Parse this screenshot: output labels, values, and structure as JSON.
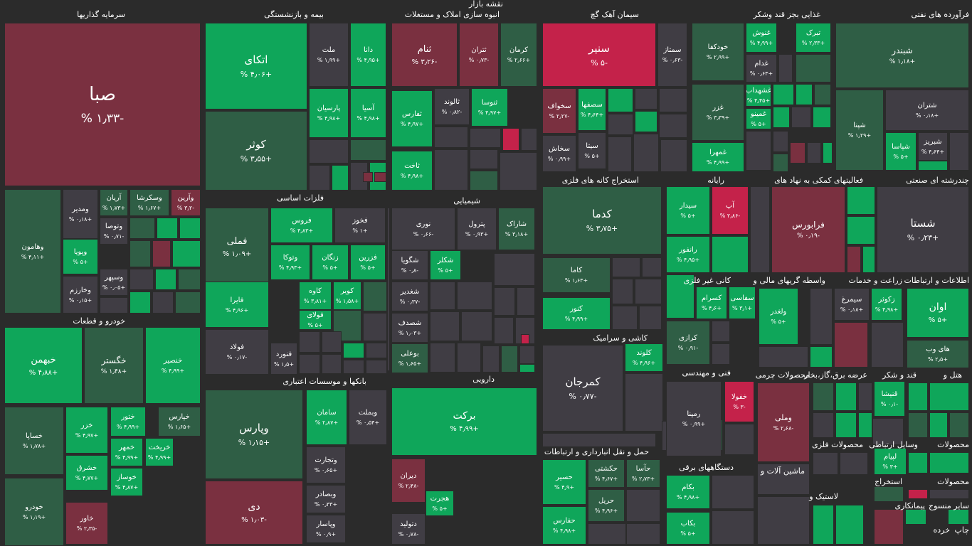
{
  "title": "نقشه بازار",
  "colors": {
    "green": "#0fa65a",
    "green2": "#138a4f",
    "dkgreen": "#2f5e45",
    "dark": "#403d44",
    "red": "#c4224a",
    "dkred": "#7a3040"
  },
  "chart_data": {
    "type": "heatmap",
    "sectors": [
      "سرمایه گذاریها",
      "بیمه و بازنشستگی",
      "انبوه سازی املاک و مستغلات",
      "سیمان آهک گچ",
      "غذایی بجز قند وشکر",
      "فرآورده های نفتی",
      "فلزات اساسی",
      "شیمیایی",
      "استخراج کانه های فلزی",
      "رایانه",
      "فعالیتهای کمکی به نهاد های",
      "چندرشته ای صنعتی",
      "خودرو و قطعات",
      "بانکها و موسسات اعتباری",
      "دارویی",
      "کاشی و سرامیک",
      "کانی غیر فلزی",
      "واسطه گریهای مالی و",
      "زراعت و خدمات",
      "اطلاعات و ارتباطات",
      "فنی و مهندسی",
      "محصولات چرمی",
      "عرضه برق،گاز،بخار",
      "قند و شکر",
      "هتل و",
      "حمل و نقل انبارداری و ارتباطات",
      "دستگاههای برقی",
      "ماشین آلات و",
      "محصولات فلزی",
      "وسایل ارتباطی",
      "محصولات",
      "لاستیک و",
      "استخراج",
      "محصولات",
      "ساير منسوج",
      "پیمانکاری",
      "خرده",
      "چاپ"
    ],
    "symbols": [
      {
        "name": "صبا",
        "change": "-۱٫۳۳ %"
      },
      {
        "name": "وهامون",
        "change": "+۴٫۱۱ %"
      },
      {
        "name": "ومدیر",
        "change": "+۰٫۱۸ %"
      },
      {
        "name": "آریان",
        "change": "+۱٫۷۳ %"
      },
      {
        "name": "وسکرشا",
        "change": "+۱٫۶۷ %"
      },
      {
        "name": "وآرین",
        "change": "-۳٫۲ %"
      },
      {
        "name": "وتوصا",
        "change": "-۰٫۷۱ %"
      },
      {
        "name": "وپویا",
        "change": "+۵ %"
      },
      {
        "name": "وسپهر",
        "change": "+۰٫۰۵ %"
      },
      {
        "name": "وخارزم",
        "change": "+۰٫۱۵ %"
      },
      {
        "name": "اتکای",
        "change": "+۴٫۰۶ %"
      },
      {
        "name": "ملت",
        "change": "+۱٫۹۹ %"
      },
      {
        "name": "دانا",
        "change": "+۴٫۹۵ %"
      },
      {
        "name": "پارسیان",
        "change": "+۴٫۹۸ %"
      },
      {
        "name": "آسیا",
        "change": "+۴٫۹۸ %"
      },
      {
        "name": "کوثر",
        "change": "+۳٫۵۵ %"
      },
      {
        "name": "ثنام",
        "change": "-۳٫۲۶ %"
      },
      {
        "name": "ثتران",
        "change": "-۰٫۷۳ %"
      },
      {
        "name": "کرمان",
        "change": "+۲٫۶۶ %"
      },
      {
        "name": "ثالوند",
        "change": "-۰٫۸۲ %"
      },
      {
        "name": "ثنوسا",
        "change": "+۴٫۹۷ %"
      },
      {
        "name": "ثفارس",
        "change": "+۴٫۹۷ %"
      },
      {
        "name": "ثاخت",
        "change": "+۴٫۹۸ %"
      },
      {
        "name": "سنیر",
        "change": "-۵ %"
      },
      {
        "name": "سمتاز",
        "change": "-۰٫۶۳ %"
      },
      {
        "name": "سخواف",
        "change": "-۲٫۲۷ %"
      },
      {
        "name": "سصفها",
        "change": "+۴٫۶۴ %"
      },
      {
        "name": "سخاش",
        "change": "+۰٫۹۹ %"
      },
      {
        "name": "سیتا",
        "change": "+۵ %"
      },
      {
        "name": "خودکفا",
        "change": "+۲٫۹۹ %"
      },
      {
        "name": "غنوش",
        "change": "+۴٫۹۹ %"
      },
      {
        "name": "تبرک",
        "change": "+۲٫۳۳ %"
      },
      {
        "name": "غدام",
        "change": "+۰٫۶۳ %"
      },
      {
        "name": "غزر",
        "change": "+۳٫۳۹ %"
      },
      {
        "name": "غشهداب",
        "change": "+۴٫۴۵ %"
      },
      {
        "name": "غمینو",
        "change": "+۵ %"
      },
      {
        "name": "غمهرا",
        "change": "+۴٫۹۹ %"
      },
      {
        "name": "شبندر",
        "change": "+۱٫۱۸ %"
      },
      {
        "name": "شتران",
        "change": "+۰٫۱۸ %"
      },
      {
        "name": "شپنا",
        "change": "+۱٫۲۹ %"
      },
      {
        "name": "شپاسا",
        "change": "+۵ %"
      },
      {
        "name": "شبریز",
        "change": "+۴٫۶۴ %"
      },
      {
        "name": "فملی",
        "change": "+۱٫۰۹ %"
      },
      {
        "name": "فروس",
        "change": "+۴٫۸۳ %"
      },
      {
        "name": "فخوز",
        "change": "+۱ %"
      },
      {
        "name": "وتوکا",
        "change": "+۴٫۹۳ %"
      },
      {
        "name": "زنگان",
        "change": "+۵ %"
      },
      {
        "name": "فزرین",
        "change": "+۵ %"
      },
      {
        "name": "فایرا",
        "change": "+۴٫۹۶ %"
      },
      {
        "name": "کاوه",
        "change": "+۳٫۸۱ %"
      },
      {
        "name": "کویر",
        "change": "+۱٫۵۸ %"
      },
      {
        "name": "فولای",
        "change": "+۵ %"
      },
      {
        "name": "فولاد",
        "change": "-۰٫۱۷ %"
      },
      {
        "name": "فنورد",
        "change": "+۱٫۵ %"
      },
      {
        "name": "نوری",
        "change": "-۰٫۶۶ %"
      },
      {
        "name": "پترول",
        "change": "+۰٫۹۳ %"
      },
      {
        "name": "شاراک",
        "change": "+۳٫۱۸ %"
      },
      {
        "name": "شگویا",
        "change": "-۰٫۸ %"
      },
      {
        "name": "شکلر",
        "change": "+۵ %"
      },
      {
        "name": "شغدیر",
        "change": "-۰٫۳۷ %"
      },
      {
        "name": "شصدف",
        "change": "+۱٫۰۳ %"
      },
      {
        "name": "بوعلی",
        "change": "+۱٫۶۵ %"
      },
      {
        "name": "کدما",
        "change": "+۳٫۷۵ %"
      },
      {
        "name": "کاما",
        "change": "+۱٫۶۳ %"
      },
      {
        "name": "کنور",
        "change": "+۴٫۹۹ %"
      },
      {
        "name": "سیدار",
        "change": "+۵ %"
      },
      {
        "name": "آپ",
        "change": "-۲٫۸۶ %"
      },
      {
        "name": "رانفور",
        "change": "+۴٫۹۵ %"
      },
      {
        "name": "فرابورس",
        "change": "-۰٫۱۹ %"
      },
      {
        "name": "شستا",
        "change": "+۰٫۲۳ %"
      },
      {
        "name": "خبهمن",
        "change": "+۴٫۸۸ %"
      },
      {
        "name": "خگستر",
        "change": "+۱٫۴۸ %"
      },
      {
        "name": "خنصیر",
        "change": "+۴٫۹۹ %"
      },
      {
        "name": "خساپا",
        "change": "+۱٫۷۸ %"
      },
      {
        "name": "خزر",
        "change": "+۴٫۹۷ %"
      },
      {
        "name": "ختور",
        "change": "+۴٫۹۹ %"
      },
      {
        "name": "خپارس",
        "change": "+۱٫۶۵ %"
      },
      {
        "name": "خمهر",
        "change": "+۴٫۹۹ %"
      },
      {
        "name": "خریخت",
        "change": "+۴٫۹۹ %"
      },
      {
        "name": "خشرق",
        "change": "+۴٫۷۷ %"
      },
      {
        "name": "خوساز",
        "change": "+۴٫۸۷ %"
      },
      {
        "name": "خودرو",
        "change": "+۱٫۱۹ %"
      },
      {
        "name": "خاور",
        "change": "-۲٫۳۵ %"
      },
      {
        "name": "وپارس",
        "change": "+۱٫۱۵ %"
      },
      {
        "name": "سامان",
        "change": "+۲٫۸۷ %"
      },
      {
        "name": "وبملت",
        "change": "+۰٫۵۴ %"
      },
      {
        "name": "وتجارت",
        "change": "+۰٫۶۵ %"
      },
      {
        "name": "دی",
        "change": "-۱٫۰۳ %"
      },
      {
        "name": "وبصادر",
        "change": "+۰٫۳۳ %"
      },
      {
        "name": "وپاسار",
        "change": "+۰٫۹ %"
      },
      {
        "name": "برکت",
        "change": "+۴٫۹۹ %"
      },
      {
        "name": "دیران",
        "change": "-۲٫۴۸ %"
      },
      {
        "name": "هجرت",
        "change": "+۵ %"
      },
      {
        "name": "دتولید",
        "change": "-۰٫۷۸ %"
      },
      {
        "name": "کلوند",
        "change": "+۴٫۹۶ %"
      },
      {
        "name": "کمرجان",
        "change": "-۰٫۷۷ %"
      },
      {
        "name": "کسرام",
        "change": "+۴٫۶ %"
      },
      {
        "name": "سفاسی",
        "change": "+۳٫۱ %"
      },
      {
        "name": "کرازی",
        "change": "-۰٫۹۱ %"
      },
      {
        "name": "ولغدر",
        "change": "+۵ %"
      },
      {
        "name": "سیمرغ",
        "change": "+۰٫۱۸ %"
      },
      {
        "name": "زکوثر",
        "change": "+۴٫۹۸ %"
      },
      {
        "name": "اوان",
        "change": "+۵ %"
      },
      {
        "name": "های وب",
        "change": "+۲٫۵ %"
      },
      {
        "name": "خفولا",
        "change": "-۳ %"
      },
      {
        "name": "رمپنا",
        "change": "+۰٫۹۹ %"
      },
      {
        "name": "وملی",
        "change": "-۲٫۶۸ %"
      },
      {
        "name": "قنیشا",
        "change": "-۰٫۱ %"
      },
      {
        "name": "لپیام",
        "change": "+۳ %"
      },
      {
        "name": "حسیر",
        "change": "+۴٫۹ %"
      },
      {
        "name": "حکشتی",
        "change": "+۴٫۶۷ %"
      },
      {
        "name": "حآسا",
        "change": "+۲٫۷۳ %"
      },
      {
        "name": "حریل",
        "change": "+۴٫۹۶ %"
      },
      {
        "name": "حفارس",
        "change": "+۴٫۹۸ %"
      },
      {
        "name": "بکام",
        "change": "+۴٫۹۸ %"
      },
      {
        "name": "بکاب",
        "change": "+۵ %"
      }
    ]
  }
}
